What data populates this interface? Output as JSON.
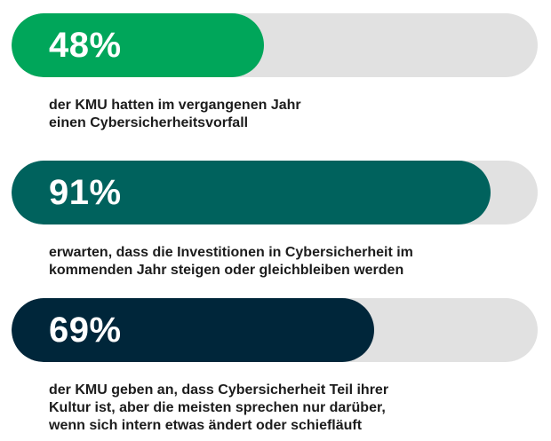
{
  "chart_data": {
    "type": "bar",
    "orientation": "horizontal",
    "value_unit": "percent",
    "ylim": [
      0,
      100
    ],
    "series": [
      {
        "value": 48,
        "label": "48%",
        "color": "#00a65a",
        "caption": "der KMU hatten im vergangenen Jahr\neinen Cybersicherheitsvorfall"
      },
      {
        "value": 91,
        "label": "91%",
        "color": "#00625d",
        "caption": "erwarten, dass die Investitionen in Cybersicherheit im\nkommenden Jahr steigen oder gleichbleiben werden"
      },
      {
        "value": 69,
        "label": "69%",
        "color": "#00263a",
        "caption": "der KMU geben an, dass Cybersicherheit Teil ihrer\nKultur ist, aber die meisten sprechen nur darüber,\nwenn sich intern etwas ändert oder schiefläuft"
      }
    ],
    "track_color": "#e1e1e1"
  }
}
